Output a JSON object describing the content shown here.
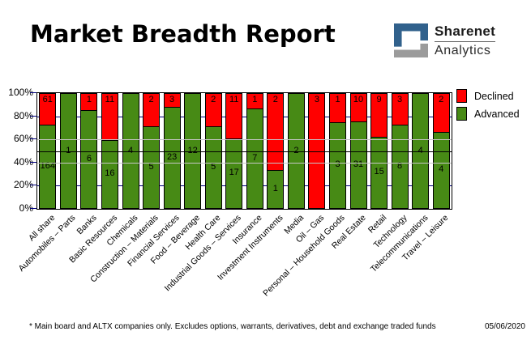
{
  "title": "Market Breadth Report",
  "logo": {
    "line1": "Sharenet",
    "line2": "Analytics",
    "icon_blue": "#31618C",
    "icon_gray": "#9B9B9B"
  },
  "legend": {
    "items": [
      {
        "label": "Declined",
        "color": "#FF0000"
      },
      {
        "label": "Advanced",
        "color": "#478A15"
      }
    ]
  },
  "footer": {
    "note": "* Main board and ALTX companies only. Excludes options, warrants, derivatives, debt and exchange traded funds",
    "date": "05/06/2020"
  },
  "chart_data": {
    "type": "bar",
    "subtype": "stacked-percent-column",
    "title": "Market Breadth Report",
    "xlabel": "",
    "ylabel": "",
    "ylim": [
      0,
      100
    ],
    "y_ticks": [
      "0%",
      "20%",
      "40%",
      "60%",
      "80%",
      "100%"
    ],
    "legend_position": "top-right",
    "grid": {
      "navy_lines_pct": [
        20,
        40,
        60,
        80
      ],
      "gray_overlay_lines_pct": [
        40,
        60
      ],
      "black_midline_pct": 50,
      "navy_color": "#00007E",
      "gray_color": "#C6C6C6",
      "midline_color": "#000000"
    },
    "categories": [
      "All share",
      "Automobiles – Parts",
      "Banks",
      "Basic Resources",
      "Chemicals",
      "Construction – Materials",
      "Financial Services",
      "Food – Beverage",
      "Health Care",
      "Industrial Goods – Services",
      "Insurance",
      "Investment Instruments",
      "Media",
      "Oil – Gas",
      "Personal – Household Goods",
      "Real Estate",
      "Retail",
      "Technology",
      "Telecommunications",
      "Travel – Leisure"
    ],
    "series": [
      {
        "name": "Declined",
        "color": "#FF0000",
        "values": [
          61,
          0,
          1,
          11,
          0,
          2,
          3,
          0,
          2,
          11,
          1,
          2,
          0,
          3,
          1,
          10,
          9,
          3,
          0,
          2
        ]
      },
      {
        "name": "Advanced",
        "color": "#478A15",
        "values": [
          164,
          1,
          6,
          16,
          4,
          5,
          23,
          12,
          5,
          17,
          7,
          1,
          2,
          0,
          3,
          31,
          15,
          8,
          4,
          4
        ]
      }
    ]
  }
}
